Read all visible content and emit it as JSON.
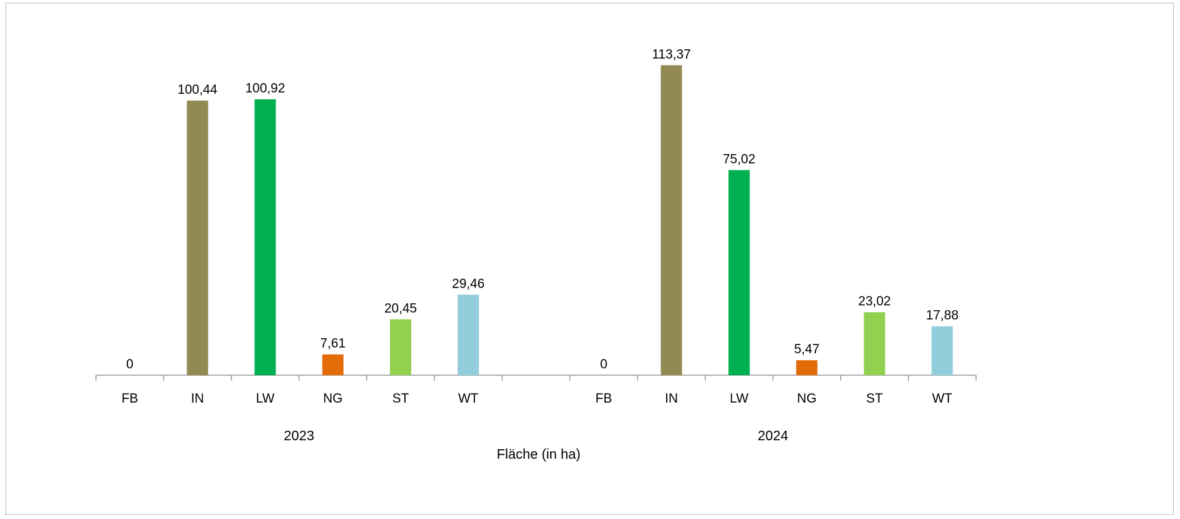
{
  "chart_data": {
    "type": "bar",
    "xlabel": "Fläche (in ha)",
    "ylim": [
      0,
      120
    ],
    "grid": false,
    "groups": [
      {
        "name": "2023",
        "categories": [
          "FB",
          "IN",
          "LW",
          "NG",
          "ST",
          "WT"
        ],
        "values": [
          0,
          100.44,
          100.92,
          7.61,
          20.45,
          29.46
        ],
        "labels": [
          "0",
          "100,44",
          "100,92",
          "7,61",
          "20,45",
          "29,46"
        ]
      },
      {
        "name": "2024",
        "categories": [
          "FB",
          "IN",
          "LW",
          "NG",
          "ST",
          "WT"
        ],
        "values": [
          0,
          113.37,
          75.02,
          5.47,
          23.02,
          17.88
        ],
        "labels": [
          "0",
          "113,37",
          "75,02",
          "5,47",
          "23,02",
          "17,88"
        ]
      }
    ],
    "category_colors": {
      "FB": "#808080",
      "IN": "#938953",
      "LW": "#00b050",
      "NG": "#e36c09",
      "ST": "#92d050",
      "WT": "#92cddc"
    }
  }
}
